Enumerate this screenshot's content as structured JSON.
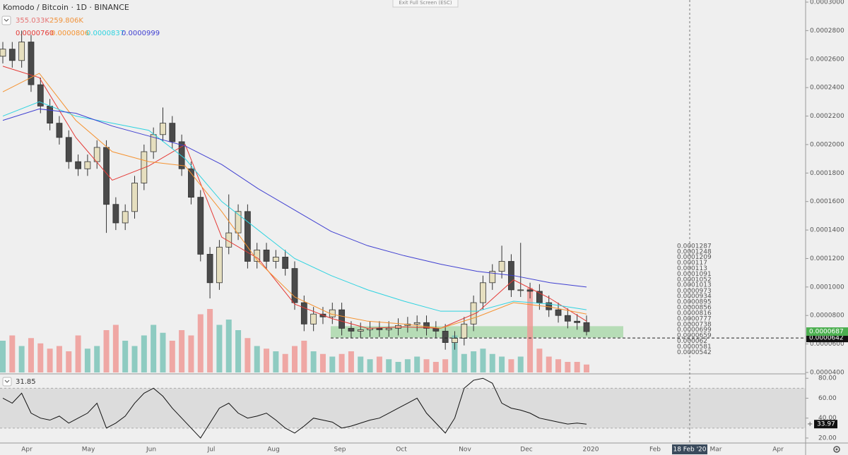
{
  "chart_data": {
    "type": "candlestick",
    "title": "Komodo / Bitcoin · 1D · BINANCE",
    "fullscreen_button": "Exit Full Screen (ESC)",
    "volume_legend": [
      {
        "text": "355.033K",
        "color": "#e57373"
      },
      {
        "text": "259.806K",
        "color": "#f0923a"
      }
    ],
    "up_color": "#e6dfbf",
    "down_color": "#4a4a4a",
    "wick_color": "#333333",
    "volume_up_color": "#7cc4b8",
    "volume_down_color": "#ef9a96",
    "grid": false,
    "open": [
      0.000262,
      0.000267,
      0.000259,
      0.000272,
      0.000242,
      0.000227,
      0.000215,
      0.000205,
      0.000188,
      0.000183,
      0.000188,
      0.000198,
      0.000158,
      0.000145,
      0.000153,
      0.000173,
      0.000195,
      0.000207,
      0.000215,
      0.000202,
      0.000183,
      0.000163,
      0.000123,
      0.000103,
      0.000128,
      0.000138,
      0.000153,
      0.000118,
      0.000126,
      0.000118,
      0.000121,
      0.000113,
      8.9e-05,
      7.4e-05,
      8.1e-05,
      7.9e-05,
      8.4e-05,
      7.1e-05,
      6.9e-05,
      7e-05,
      7.1e-05,
      7e-05,
      7.1e-05,
      7.3e-05,
      7.4e-05,
      7.5e-05,
      7.1e-05,
      6.9e-05,
      6.1e-05,
      6.4e-05,
      7.4e-05,
      8.9e-05,
      0.000103,
      0.000111,
      0.000118,
      9.8e-05,
      9.8e-05,
      9.7e-05,
      8.9e-05,
      8.4e-05,
      8e-05,
      7.6e-05,
      7.5e-05
    ],
    "high": [
      0.000272,
      0.000272,
      0.00028,
      0.000277,
      0.000247,
      0.000232,
      0.00022,
      0.00021,
      0.000193,
      0.000193,
      0.000203,
      0.000203,
      0.000163,
      0.000158,
      0.000178,
      0.0002,
      0.000212,
      0.000226,
      0.00022,
      0.000207,
      0.000188,
      0.000168,
      0.000128,
      0.000133,
      0.000165,
      0.000158,
      0.000158,
      0.000131,
      0.000131,
      0.000126,
      0.000126,
      0.000118,
      9.4e-05,
      8.6e-05,
      8.6e-05,
      8.9e-05,
      8.9e-05,
      7.6e-05,
      7.5e-05,
      7.6e-05,
      7.6e-05,
      7.6e-05,
      7.8e-05,
      7.9e-05,
      8e-05,
      8e-05,
      7.6e-05,
      7.4e-05,
      6.9e-05,
      7.9e-05,
      9.4e-05,
      0.000108,
      0.000116,
      0.000129,
      0.000123,
      0.000131,
      0.000103,
      0.000102,
      9.4e-05,
      8.9e-05,
      8.5e-05,
      8.1e-05,
      8e-05
    ],
    "low": [
      0.000257,
      0.000254,
      0.000254,
      0.000237,
      0.000222,
      0.00021,
      0.0002,
      0.000183,
      0.000178,
      0.000178,
      0.000183,
      0.000138,
      0.00014,
      0.00014,
      0.000148,
      0.000168,
      0.00019,
      0.000202,
      0.000197,
      0.000178,
      0.000158,
      0.000118,
      9.2e-05,
      9.8e-05,
      0.000123,
      0.000133,
      0.000113,
      0.000113,
      0.000113,
      0.000113,
      0.000108,
      8.4e-05,
      6.9e-05,
      6.9e-05,
      7.4e-05,
      7.4e-05,
      6.6e-05,
      6.4e-05,
      6.4e-05,
      6.5e-05,
      6.5e-05,
      6.5e-05,
      6.6e-05,
      6.8e-05,
      6.9e-05,
      6.6e-05,
      6.4e-05,
      5.6e-05,
      5.6e-05,
      5.9e-05,
      6.9e-05,
      8.4e-05,
      9.8e-05,
      0.000106,
      9.3e-05,
      9.3e-05,
      9.2e-05,
      8.4e-05,
      7.9e-05,
      7.5e-05,
      7.1e-05,
      7e-05,
      6.6e-05
    ],
    "close": [
      0.000267,
      0.000259,
      0.000272,
      0.000242,
      0.000227,
      0.000215,
      0.000205,
      0.000188,
      0.000183,
      0.000188,
      0.000198,
      0.000158,
      0.000145,
      0.000153,
      0.000173,
      0.000195,
      0.000207,
      0.000215,
      0.000202,
      0.000183,
      0.000163,
      0.000123,
      0.000103,
      0.000128,
      0.000138,
      0.000153,
      0.000118,
      0.000126,
      0.000118,
      0.000121,
      0.000113,
      8.9e-05,
      7.4e-05,
      8.1e-05,
      7.9e-05,
      8.4e-05,
      7.1e-05,
      6.9e-05,
      7e-05,
      7.1e-05,
      7e-05,
      7.1e-05,
      7.3e-05,
      7.4e-05,
      7.5e-05,
      7.1e-05,
      6.9e-05,
      6.1e-05,
      6.4e-05,
      7.4e-05,
      8.9e-05,
      0.000103,
      0.000111,
      0.000118,
      9.8e-05,
      9.8e-05,
      9.7e-05,
      8.9e-05,
      8.4e-05,
      8e-05,
      7.6e-05,
      7.5e-05,
      6.87e-05
    ],
    "volume": [
      600000,
      700000,
      500000,
      650000,
      550000,
      450000,
      500000,
      400000,
      700000,
      450000,
      500000,
      800000,
      900000,
      600000,
      500000,
      700000,
      900000,
      750000,
      600000,
      800000,
      700000,
      1100000,
      1200000,
      900000,
      1000000,
      800000,
      650000,
      500000,
      450000,
      400000,
      350000,
      500000,
      600000,
      400000,
      350000,
      300000,
      350000,
      400000,
      300000,
      250000,
      300000,
      250000,
      200000,
      250000,
      300000,
      250000,
      200000,
      250000,
      700000,
      350000,
      400000,
      450000,
      350000,
      300000,
      250000,
      300000,
      1600000,
      450000,
      300000,
      250000,
      200000,
      200000,
      150000
    ],
    "series": [
      {
        "name": "0.0000760",
        "color": "#e53935",
        "values": [
          0.000255,
          0.000247,
          0.000205,
          0.000175,
          0.000185,
          0.0002,
          0.000135,
          0.00012,
          8.8e-05,
          7.8e-05,
          7.1e-05,
          7.2e-05,
          7.1e-05,
          8.2e-05,
          0.000105,
          9.2e-05,
          7.6e-05
        ]
      },
      {
        "name": "0.0000806",
        "color": "#f59331",
        "values": [
          0.000237,
          0.00025,
          0.000217,
          0.000195,
          0.000188,
          0.000185,
          0.000153,
          0.000118,
          9.3e-05,
          8.1e-05,
          7.6e-05,
          7.4e-05,
          7.1e-05,
          7.9e-05,
          8.9e-05,
          8.6e-05,
          8.1e-05
        ]
      },
      {
        "name": "0.0000837",
        "color": "#2ed3e0",
        "values": [
          0.00022,
          0.00023,
          0.00022,
          0.000215,
          0.00021,
          0.00019,
          0.00016,
          0.00014,
          0.00012,
          0.000108,
          9.8e-05,
          9e-05,
          8.3e-05,
          8.3e-05,
          9e-05,
          8.8e-05,
          8.4e-05
        ]
      },
      {
        "name": "0.0000999",
        "color": "#3f3fd1",
        "values": [
          0.000217,
          0.000225,
          0.000222,
          0.000213,
          0.000206,
          0.000199,
          0.000186,
          0.000169,
          0.000154,
          0.000139,
          0.000129,
          0.000122,
          0.000116,
          0.000111,
          0.000108,
          0.000103,
          0.0001
        ]
      }
    ],
    "ylim": [
      4e-05,
      0.0003
    ],
    "yticks": [
      {
        "value": 0.0003,
        "label": "0.0003000"
      },
      {
        "value": 0.00028,
        "label": "0.0002800"
      },
      {
        "value": 0.00026,
        "label": "0.0002600"
      },
      {
        "value": 0.00024,
        "label": "0.0002400"
      },
      {
        "value": 0.00022,
        "label": "0.0002200"
      },
      {
        "value": 0.0002,
        "label": "0.0002000"
      },
      {
        "value": 0.00018,
        "label": "0.0001800"
      },
      {
        "value": 0.00016,
        "label": "0.0001600"
      },
      {
        "value": 0.00014,
        "label": "0.0001400"
      },
      {
        "value": 0.00012,
        "label": "0.0001200"
      },
      {
        "value": 0.0001,
        "label": "0.0001000"
      },
      {
        "value": 8e-05,
        "label": "0.0000800"
      },
      {
        "value": 6e-05,
        "label": "0.0000600"
      },
      {
        "value": 4e-05,
        "label": "0.0000400"
      }
    ],
    "zone": [
      6.45e-05,
      7.25e-05
    ],
    "zone_color": "#8fce8f",
    "hline": {
      "value": 6.42e-05,
      "label": "0.0000642"
    },
    "last_price": {
      "value": 6.87e-05,
      "label": "0.0000687"
    },
    "profile_levels": [
      {
        "value": 0.0001287,
        "label": "0.0001287"
      },
      {
        "value": 0.0001248,
        "label": "0.0001248"
      },
      {
        "value": 0.0001209,
        "label": "0.0001209"
      },
      {
        "value": 0.000117,
        "label": "0.000117"
      },
      {
        "value": 0.000113,
        "label": "0.000113"
      },
      {
        "value": 0.0001091,
        "label": "0.0001091"
      },
      {
        "value": 0.0001052,
        "label": "0.0001052"
      },
      {
        "value": 0.0001013,
        "label": "0.0001013"
      },
      {
        "value": 9.73e-05,
        "label": "0.0000973"
      },
      {
        "value": 9.34e-05,
        "label": "0.0000934"
      },
      {
        "value": 8.95e-05,
        "label": "0.0000895"
      },
      {
        "value": 8.56e-05,
        "label": "0.0000856"
      },
      {
        "value": 8.16e-05,
        "label": "0.0000816"
      },
      {
        "value": 7.77e-05,
        "label": "0.0000777"
      },
      {
        "value": 7.38e-05,
        "label": "0.0000738"
      },
      {
        "value": 6.99e-05,
        "label": "0.0000699"
      },
      {
        "value": 6.59e-05,
        "label": "0.0000659"
      },
      {
        "value": 6.2e-05,
        "label": "0.000062"
      },
      {
        "value": 5.81e-05,
        "label": "0.0000581"
      },
      {
        "value": 5.42e-05,
        "label": "0.0000542"
      }
    ],
    "x_labels": [
      "Apr",
      "May",
      "Jun",
      "Jul",
      "Aug",
      "Sep",
      "Oct",
      "Nov",
      "Dec",
      "2020",
      "Feb",
      "Mar",
      "Apr"
    ],
    "crosshair_label": "18 Feb '20",
    "rsi": {
      "legend": "31.85",
      "color": "#111111",
      "values": [
        60,
        55,
        65,
        45,
        40,
        38,
        42,
        35,
        40,
        45,
        55,
        30,
        35,
        42,
        55,
        65,
        70,
        62,
        50,
        40,
        30,
        20,
        35,
        50,
        55,
        45,
        40,
        42,
        45,
        38,
        30,
        25,
        32,
        40,
        38,
        36,
        30,
        32,
        35,
        38,
        40,
        45,
        50,
        55,
        60,
        45,
        35,
        25,
        40,
        70,
        78,
        80,
        75,
        55,
        50,
        48,
        45,
        40,
        38,
        36,
        34,
        35,
        33.97
      ],
      "ylim": [
        15,
        83
      ],
      "band": [
        30,
        70
      ],
      "yticks": [
        {
          "value": 80,
          "label": "80.00"
        },
        {
          "value": 60,
          "label": "60.00"
        },
        {
          "value": 40,
          "label": "40.00"
        },
        {
          "value": 20,
          "label": "20.00"
        }
      ]
    }
  }
}
